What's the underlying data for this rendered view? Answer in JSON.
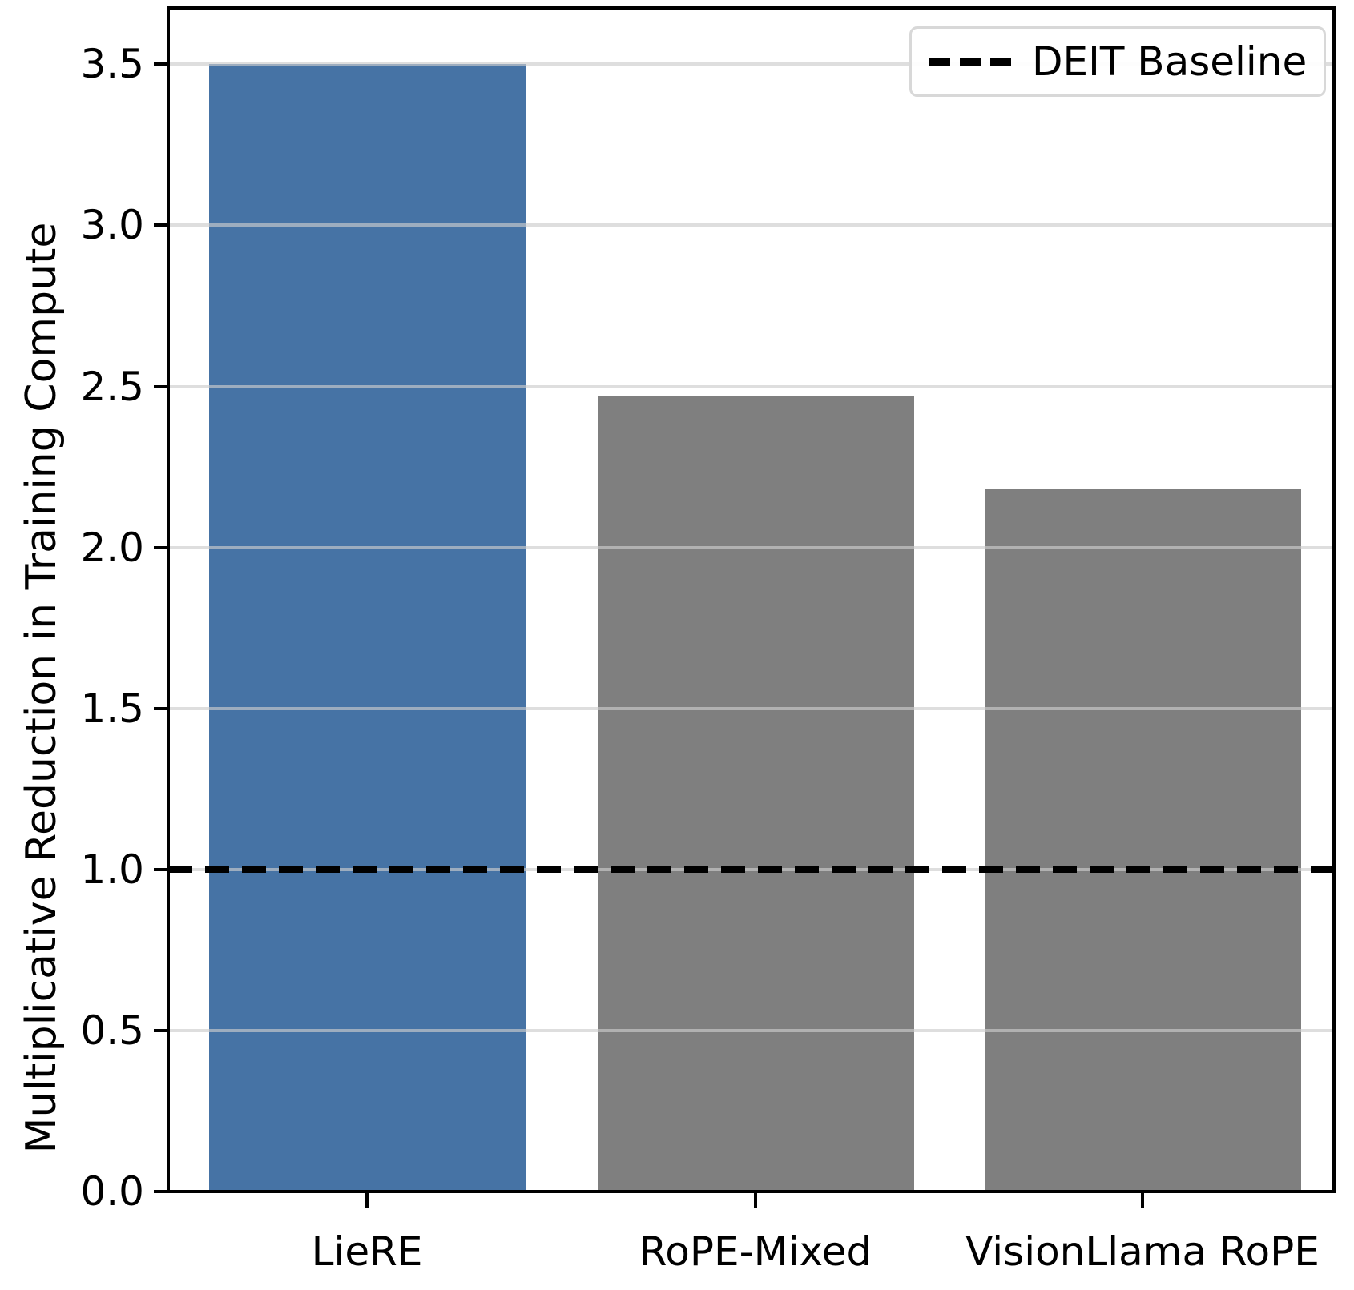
{
  "chart_data": {
    "type": "bar",
    "title": "",
    "xlabel": "",
    "ylabel": "Multiplicative Reduction in Training Compute",
    "categories": [
      "LieRE",
      "RoPE-Mixed",
      "VisionLlama RoPE"
    ],
    "values": [
      3.5,
      2.47,
      2.18
    ],
    "bar_colors": [
      "#4673A5",
      "#7F7F7F",
      "#7F7F7F"
    ],
    "ylim": [
      0,
      3.675
    ],
    "yticks": [
      0.0,
      0.5,
      1.0,
      1.5,
      2.0,
      2.5,
      3.0,
      3.5
    ],
    "ytick_labels": [
      "0.0",
      "0.5",
      "1.0",
      "1.5",
      "2.0",
      "2.5",
      "3.0",
      "3.5"
    ],
    "grid": "horizontal gridlines at 0.5 intervals, light gray, drawn above bars",
    "baseline": {
      "value": 1.0,
      "style": "dashed",
      "color": "#000000"
    },
    "legend": {
      "position": "upper right",
      "entries": [
        {
          "label": "DEIT Baseline",
          "marker": "dashed-black-line"
        }
      ]
    }
  },
  "colors": {
    "highlight_bar": "#4673A5",
    "other_bars": "#7F7F7F",
    "gridline": "rgba(205,205,205,0.65)",
    "baseline_line": "#000000",
    "spine": "#000000",
    "legend_border": "#d8d8d8",
    "background": "#ffffff"
  }
}
